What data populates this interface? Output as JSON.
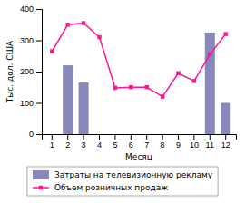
{
  "chart_data": {
    "type": "bar",
    "xlabel": "Месяц",
    "ylabel": "Тыс. дол. США",
    "categories": [
      "1",
      "2",
      "3",
      "4",
      "5",
      "6",
      "7",
      "8",
      "9",
      "10",
      "11",
      "12"
    ],
    "series": [
      {
        "name": "Затраты на телевизионную рекламу",
        "type": "bar",
        "color": "#8888bb",
        "values": [
          0,
          220,
          165,
          0,
          0,
          0,
          0,
          0,
          0,
          0,
          325,
          100
        ]
      },
      {
        "name": "Объем розничных продаж",
        "type": "line",
        "color": "#ff1493",
        "marker": "square",
        "values": [
          265,
          350,
          355,
          310,
          148,
          150,
          150,
          120,
          195,
          170,
          255,
          320
        ]
      }
    ],
    "ylim": [
      0,
      400
    ],
    "yticks": [
      0,
      100,
      200,
      300,
      400
    ],
    "legend": "bottom"
  }
}
